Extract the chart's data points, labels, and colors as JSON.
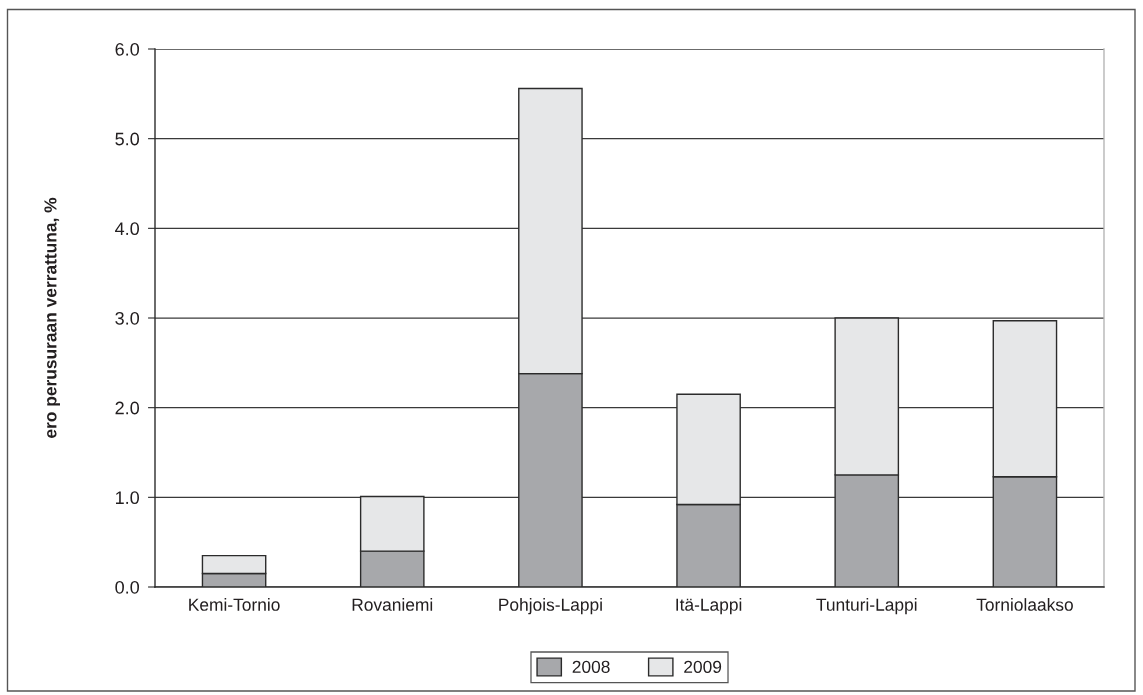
{
  "chart_data": {
    "type": "bar",
    "stacked": true,
    "ylabel": "ero perusuraan verrattuna, %",
    "categories": [
      "Kemi-Tornio",
      "Rovaniemi",
      "Pohjois-Lappi",
      "Itä-Lappi",
      "Tunturi-Lappi",
      "Torniolaakso"
    ],
    "series": [
      {
        "name": "2008",
        "color": "#a7a8ab",
        "values": [
          0.15,
          0.4,
          2.38,
          0.92,
          1.25,
          1.23
        ]
      },
      {
        "name": "2009",
        "color": "#e6e7e8",
        "values": [
          0.2,
          0.61,
          3.18,
          1.23,
          1.75,
          1.74
        ]
      }
    ],
    "ylim": [
      0,
      6
    ],
    "yticks": [
      {
        "value": 0,
        "label": "0.0"
      },
      {
        "value": 1,
        "label": "1.0"
      },
      {
        "value": 2,
        "label": "2.0"
      },
      {
        "value": 3,
        "label": "3.0"
      },
      {
        "value": 4,
        "label": "4.0"
      },
      {
        "value": 5,
        "label": "5.0"
      },
      {
        "value": 6,
        "label": "6.0"
      }
    ],
    "grid": "y",
    "legend": "bottom"
  }
}
